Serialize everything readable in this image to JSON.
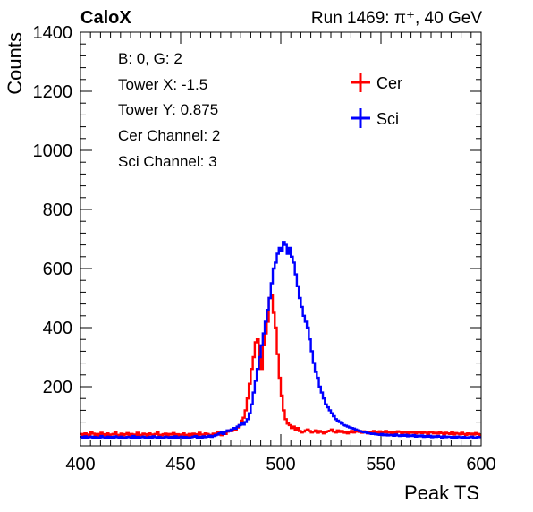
{
  "header": {
    "experiment": "CaloX",
    "run_info": "Run 1469:   π⁺, 40 GeV"
  },
  "info_box": [
    "B: 0, G: 2",
    "Tower X: -1.5",
    "Tower Y: 0.875",
    "Cer Channel: 2",
    "Sci Channel: 3"
  ],
  "colors": {
    "cer": "#ff0000",
    "sci": "#0000ff",
    "axis": "#000000"
  },
  "chart_data": {
    "type": "line",
    "subtype": "step-histogram",
    "title": "",
    "xlabel": "Peak TS",
    "ylabel": "Counts",
    "xlim": [
      400,
      600
    ],
    "ylim": [
      0,
      1400
    ],
    "x_ticks": [
      400,
      450,
      500,
      550,
      600
    ],
    "y_ticks": [
      200,
      400,
      600,
      800,
      1000,
      1200,
      1400
    ],
    "legend_position": "top-right",
    "bin_width": 1,
    "x_start": 400,
    "series": [
      {
        "name": "Cer",
        "values": [
          40,
          35,
          42,
          38,
          30,
          45,
          41,
          36,
          40,
          33,
          44,
          39,
          36,
          42,
          31,
          38,
          40,
          45,
          37,
          34,
          41,
          36,
          39,
          43,
          35,
          40,
          38,
          32,
          44,
          37,
          36,
          41,
          39,
          35,
          42,
          38,
          33,
          40,
          45,
          37,
          36,
          39,
          41,
          34,
          40,
          38,
          43,
          36,
          39,
          35,
          38,
          42,
          37,
          33,
          40,
          36,
          41,
          39,
          35,
          44,
          38,
          36,
          42,
          40,
          37,
          34,
          41,
          39,
          45,
          38,
          36,
          43,
          40,
          48,
          52,
          50,
          58,
          55,
          62,
          70,
          85,
          95,
          120,
          160,
          210,
          260,
          300,
          350,
          360,
          300,
          260,
          340,
          380,
          420,
          500,
          510,
          450,
          400,
          310,
          230,
          170,
          120,
          90,
          75,
          70,
          60,
          65,
          55,
          60,
          50,
          45,
          48,
          52,
          55,
          50,
          45,
          48,
          52,
          44,
          50,
          47,
          42,
          46,
          49,
          51,
          55,
          48,
          45,
          52,
          47,
          50,
          44,
          48,
          42,
          46,
          50,
          45,
          48,
          52,
          47,
          44,
          49,
          46,
          42,
          48,
          45,
          50,
          47,
          44,
          49,
          43,
          46,
          50,
          45,
          48,
          42,
          46,
          44,
          49,
          47,
          43,
          45,
          48,
          41,
          46,
          44,
          47,
          42,
          45,
          48,
          43,
          46,
          44,
          40,
          45,
          47,
          42,
          44,
          41,
          46,
          43,
          39,
          44,
          42,
          40,
          45,
          38,
          43,
          41,
          39,
          44,
          40,
          37,
          42,
          39,
          41,
          38,
          43,
          40,
          36
        ],
        "color": "#ff0000"
      },
      {
        "name": "Sci",
        "values": [
          30,
          28,
          32,
          25,
          29,
          31,
          27,
          30,
          26,
          28,
          33,
          29,
          27,
          31,
          26,
          30,
          28,
          32,
          29,
          27,
          31,
          28,
          26,
          30,
          29,
          27,
          33,
          28,
          30,
          26,
          29,
          31,
          27,
          28,
          30,
          26,
          32,
          29,
          27,
          30,
          28,
          26,
          31,
          29,
          27,
          30,
          28,
          32,
          26,
          29,
          31,
          27,
          30,
          28,
          26,
          29,
          31,
          33,
          28,
          30,
          27,
          32,
          29,
          31,
          34,
          30,
          33,
          36,
          38,
          42,
          45,
          40,
          48,
          52,
          50,
          55,
          60,
          58,
          65,
          70,
          75,
          72,
          80,
          90,
          110,
          140,
          180,
          220,
          260,
          300,
          340,
          380,
          420,
          460,
          500,
          550,
          600,
          620,
          650,
          670,
          660,
          690,
          680,
          650,
          670,
          640,
          620,
          580,
          540,
          500,
          470,
          440,
          420,
          400,
          360,
          320,
          280,
          250,
          230,
          200,
          180,
          160,
          140,
          130,
          120,
          110,
          100,
          90,
          85,
          80,
          75,
          70,
          68,
          65,
          62,
          60,
          58,
          55,
          52,
          50,
          48,
          46,
          45,
          43,
          42,
          40,
          41,
          39,
          38,
          37,
          40,
          36,
          38,
          35,
          37,
          36,
          34,
          38,
          35,
          33,
          36,
          34,
          37,
          32,
          35,
          33,
          36,
          31,
          34,
          32,
          35,
          30,
          33,
          31,
          34,
          29,
          32,
          30,
          33,
          31,
          28,
          32,
          29,
          31,
          30,
          27,
          30,
          28,
          31,
          29,
          27,
          30,
          28,
          26,
          29,
          31,
          27,
          28,
          30,
          29
        ],
        "color": "#0000ff"
      }
    ]
  }
}
